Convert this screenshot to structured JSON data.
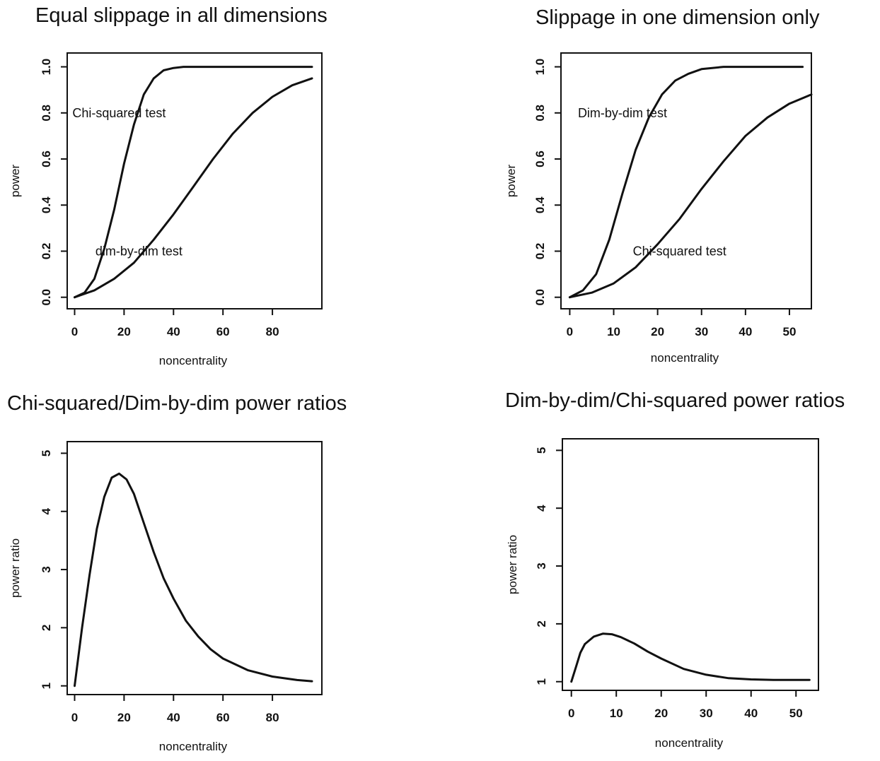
{
  "chart_data": [
    {
      "type": "line",
      "title": "Equal slippage in all dimensions",
      "xlabel": "noncentrality",
      "ylabel": "power",
      "xlim": [
        -3,
        100
      ],
      "ylim": [
        -0.05,
        1.06
      ],
      "xticks": [
        "0",
        "20",
        "40",
        "60",
        "80"
      ],
      "yticks": [
        "0.0",
        "0.2",
        "0.4",
        "0.6",
        "0.8",
        "1.0"
      ],
      "grid": false,
      "series": [
        {
          "name": "Chi-squared test",
          "x": [
            0,
            4,
            8,
            12,
            16,
            20,
            24,
            28,
            32,
            36,
            40,
            44,
            48,
            52,
            56,
            60,
            70,
            80,
            90,
            96
          ],
          "y": [
            0.0,
            0.02,
            0.08,
            0.21,
            0.38,
            0.58,
            0.75,
            0.88,
            0.95,
            0.985,
            0.995,
            1.0,
            1.0,
            1.0,
            1.0,
            1.0,
            1.0,
            1.0,
            1.0,
            1.0
          ]
        },
        {
          "name": "dim-by-dim test",
          "x": [
            0,
            8,
            16,
            24,
            32,
            40,
            48,
            56,
            64,
            72,
            80,
            88,
            96
          ],
          "y": [
            0.0,
            0.03,
            0.08,
            0.15,
            0.25,
            0.36,
            0.48,
            0.6,
            0.71,
            0.8,
            0.87,
            0.92,
            0.95
          ]
        }
      ],
      "annotations": [
        {
          "text": "Chi-squared test",
          "x": 18,
          "y": 0.8
        },
        {
          "text": "dim-by-dim test",
          "x": 26,
          "y": 0.2
        }
      ]
    },
    {
      "type": "line",
      "title": "Slippage in one dimension only",
      "xlabel": "noncentrality",
      "ylabel": "power",
      "xlim": [
        -2,
        55
      ],
      "ylim": [
        -0.05,
        1.06
      ],
      "xticks": [
        "0",
        "10",
        "20",
        "30",
        "40",
        "50"
      ],
      "yticks": [
        "0.0",
        "0.2",
        "0.4",
        "0.6",
        "0.8",
        "1.0"
      ],
      "grid": false,
      "series": [
        {
          "name": "Dim-by-dim test",
          "x": [
            0,
            3,
            6,
            9,
            12,
            15,
            18,
            21,
            24,
            27,
            30,
            35,
            40,
            45,
            50,
            53
          ],
          "y": [
            0.0,
            0.03,
            0.1,
            0.25,
            0.45,
            0.64,
            0.78,
            0.88,
            0.94,
            0.97,
            0.99,
            1.0,
            1.0,
            1.0,
            1.0,
            1.0
          ]
        },
        {
          "name": "Chi-squared test",
          "x": [
            0,
            5,
            10,
            15,
            20,
            25,
            30,
            35,
            40,
            45,
            50,
            55
          ],
          "y": [
            0.0,
            0.02,
            0.06,
            0.13,
            0.23,
            0.34,
            0.47,
            0.59,
            0.7,
            0.78,
            0.84,
            0.88
          ]
        }
      ],
      "annotations": [
        {
          "text": "Dim-by-dim test",
          "x": 12,
          "y": 0.8
        },
        {
          "text": "Chi-squared test",
          "x": 25,
          "y": 0.2
        }
      ]
    },
    {
      "type": "line",
      "title": "Chi-squared/Dim-by-dim power ratios",
      "xlabel": "noncentrality",
      "ylabel": "power ratio",
      "xlim": [
        -3,
        100
      ],
      "ylim": [
        0.85,
        5.2
      ],
      "xticks": [
        "0",
        "20",
        "40",
        "60",
        "80"
      ],
      "yticks": [
        "1",
        "2",
        "3",
        "4",
        "5"
      ],
      "grid": false,
      "series": [
        {
          "name": "power ratio",
          "x": [
            0,
            3,
            6,
            9,
            12,
            15,
            18,
            21,
            24,
            28,
            32,
            36,
            40,
            45,
            50,
            55,
            60,
            70,
            80,
            90,
            96
          ],
          "y": [
            1.0,
            2.0,
            2.9,
            3.7,
            4.25,
            4.58,
            4.65,
            4.55,
            4.3,
            3.8,
            3.3,
            2.85,
            2.5,
            2.12,
            1.85,
            1.63,
            1.47,
            1.27,
            1.16,
            1.1,
            1.08
          ]
        }
      ]
    },
    {
      "type": "line",
      "title": "Dim-by-dim/Chi-squared power ratios",
      "xlabel": "noncentrality",
      "ylabel": "power ratio",
      "xlim": [
        -2,
        55
      ],
      "ylim": [
        0.85,
        5.2
      ],
      "xticks": [
        "0",
        "10",
        "20",
        "30",
        "40",
        "50"
      ],
      "yticks": [
        "1",
        "2",
        "3",
        "4",
        "5"
      ],
      "grid": false,
      "series": [
        {
          "name": "power ratio",
          "x": [
            0,
            1,
            2,
            3,
            5,
            7,
            9,
            11,
            14,
            17,
            20,
            25,
            30,
            35,
            40,
            45,
            50,
            53
          ],
          "y": [
            1.0,
            1.25,
            1.5,
            1.65,
            1.78,
            1.83,
            1.82,
            1.77,
            1.66,
            1.52,
            1.4,
            1.22,
            1.12,
            1.06,
            1.04,
            1.03,
            1.03,
            1.03
          ]
        }
      ]
    }
  ]
}
